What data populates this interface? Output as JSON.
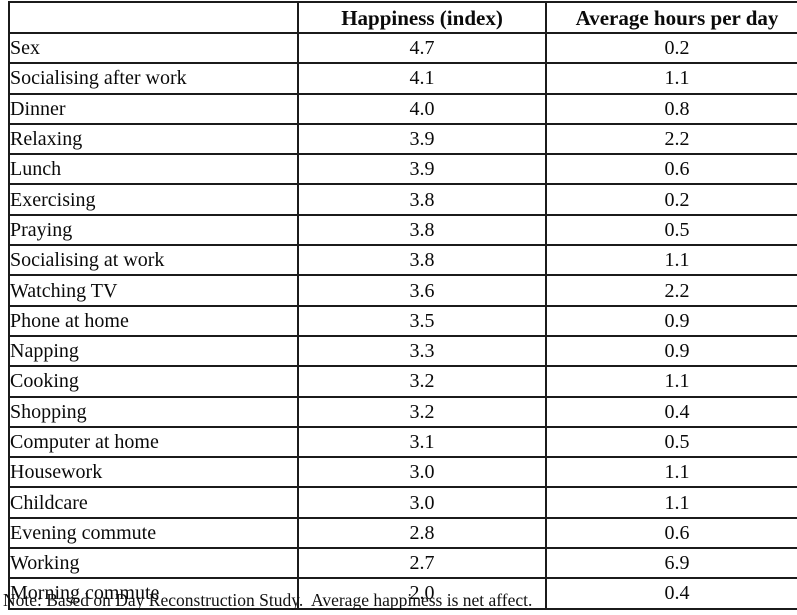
{
  "table": {
    "columns": [
      {
        "label": ""
      },
      {
        "label": "Happiness (index)"
      },
      {
        "label": "Average hours per day"
      }
    ],
    "rows": [
      {
        "activity": "Sex",
        "happiness": "4.7",
        "hours": "0.2"
      },
      {
        "activity": "Socialising after work",
        "happiness": "4.1",
        "hours": "1.1"
      },
      {
        "activity": "Dinner",
        "happiness": "4.0",
        "hours": "0.8"
      },
      {
        "activity": "Relaxing",
        "happiness": "3.9",
        "hours": "2.2"
      },
      {
        "activity": "Lunch",
        "happiness": "3.9",
        "hours": "0.6"
      },
      {
        "activity": "Exercising",
        "happiness": "3.8",
        "hours": "0.2"
      },
      {
        "activity": "Praying",
        "happiness": "3.8",
        "hours": "0.5"
      },
      {
        "activity": "Socialising at work",
        "happiness": "3.8",
        "hours": "1.1"
      },
      {
        "activity": "Watching TV",
        "happiness": "3.6",
        "hours": "2.2"
      },
      {
        "activity": "Phone at home",
        "happiness": "3.5",
        "hours": "0.9"
      },
      {
        "activity": "Napping",
        "happiness": "3.3",
        "hours": "0.9"
      },
      {
        "activity": "Cooking",
        "happiness": "3.2",
        "hours": "1.1"
      },
      {
        "activity": "Shopping",
        "happiness": "3.2",
        "hours": "0.4"
      },
      {
        "activity": "Computer at home",
        "happiness": "3.1",
        "hours": "0.5"
      },
      {
        "activity": "Housework",
        "happiness": "3.0",
        "hours": "1.1"
      },
      {
        "activity": "Childcare",
        "happiness": "3.0",
        "hours": "1.1"
      },
      {
        "activity": "Evening commute",
        "happiness": "2.8",
        "hours": "0.6"
      },
      {
        "activity": "Working",
        "happiness": "2.7",
        "hours": "6.9"
      },
      {
        "activity": "Morning commute",
        "happiness": "2.0",
        "hours": "0.4"
      }
    ]
  },
  "note": "Note: Based on Day Reconstruction Study.  Average happiness is net affect."
}
